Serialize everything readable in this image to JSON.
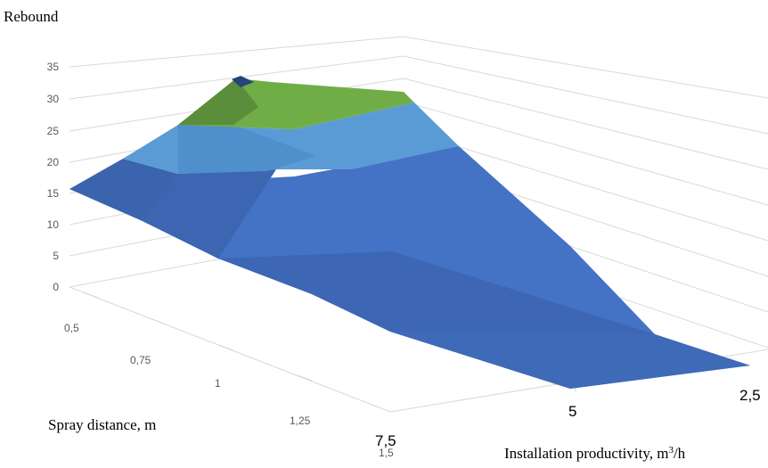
{
  "chart_data": {
    "type": "surface",
    "title": "",
    "zlabel": "Rebound",
    "xlabel": "Spray distance, m",
    "ylabel_prefix": "Installation productivity, m",
    "ylabel_sup": "3",
    "ylabel_suffix": "/h",
    "z_ticks": [
      "0",
      "5",
      "10",
      "15",
      "20",
      "25",
      "30",
      "35"
    ],
    "zlim": [
      0,
      35
    ],
    "x_ticks": [
      "0,5",
      "0,75",
      "1",
      "1,25",
      "1,5"
    ],
    "y_ticks": [
      "7,5",
      "5",
      "2,5"
    ],
    "grid": true,
    "legend": "none",
    "colors": {
      "band_0_15": "#4472c4",
      "band_15_20": "#3f68b5",
      "band_20_25": "#5b9bd5",
      "band_25_30": "#70ad47",
      "band_30_35": "#264478",
      "gridline": "#d9d9d9",
      "text": "#595959"
    }
  }
}
